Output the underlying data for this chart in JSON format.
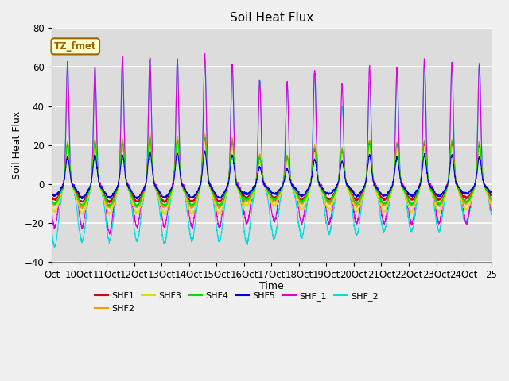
{
  "title": "Soil Heat Flux",
  "xlabel": "Time",
  "ylabel": "Soil Heat Flux",
  "ylim": [
    -40,
    80
  ],
  "xlim": [
    0,
    16
  ],
  "xtick_positions": [
    0,
    1,
    2,
    3,
    4,
    5,
    6,
    7,
    8,
    9,
    10,
    11,
    12,
    13,
    14,
    15,
    16
  ],
  "xtick_labels": [
    "Oct",
    "10Oct",
    "11Oct",
    "12Oct",
    "13Oct",
    "14Oct",
    "15Oct",
    "16Oct",
    "17Oct",
    "18Oct",
    "19Oct",
    "20Oct",
    "21Oct",
    "22Oct",
    "23Oct",
    "24Oct",
    "25"
  ],
  "ytick_positions": [
    -40,
    -20,
    0,
    20,
    40,
    60,
    80
  ],
  "series_colors": {
    "SHF1": "#dd0000",
    "SHF2": "#ff9900",
    "SHF3": "#dddd00",
    "SHF4": "#00dd00",
    "SHF5": "#0000dd",
    "SHF_1": "#dd00dd",
    "SHF_2": "#00dddd"
  },
  "annotation_text": "TZ_fmet",
  "annotation_bg": "#ffffcc",
  "annotation_border": "#996600",
  "plot_bg": "#dcdcdc",
  "fig_bg": "#f0f0f0",
  "grid_color": "#ffffff",
  "n_days": 16,
  "day_peaks_shf1": [
    20,
    21,
    21,
    24,
    23,
    24,
    22,
    14,
    13,
    18,
    17,
    21,
    20,
    21,
    21,
    20
  ],
  "day_peaks_shf2": [
    22,
    23,
    23,
    26,
    25,
    26,
    24,
    16,
    15,
    20,
    19,
    23,
    22,
    23,
    23,
    22
  ],
  "day_peaks_shf3": [
    19,
    20,
    20,
    22,
    21,
    22,
    20,
    12,
    12,
    17,
    16,
    20,
    19,
    20,
    20,
    19
  ],
  "day_peaks_shf4": [
    21,
    22,
    22,
    24,
    23,
    24,
    22,
    14,
    14,
    19,
    18,
    22,
    21,
    22,
    22,
    21
  ],
  "day_peaks_shf5": [
    14,
    15,
    15,
    17,
    16,
    17,
    15,
    9,
    8,
    13,
    12,
    15,
    14,
    15,
    15,
    14
  ],
  "day_peaks_shf_1": [
    62,
    60,
    65,
    65,
    64,
    66,
    61,
    53,
    52,
    58,
    51,
    60,
    59,
    64,
    62,
    62
  ],
  "day_peaks_shf_2": [
    62,
    60,
    62,
    65,
    64,
    65,
    60,
    53,
    52,
    58,
    40,
    52,
    59,
    63,
    62,
    62
  ],
  "day_troughs_shf1": [
    -8,
    -9,
    -9,
    -9,
    -9,
    -9,
    -9,
    -7,
    -7,
    -8,
    -8,
    -8,
    -8,
    -8,
    -8,
    -7
  ],
  "day_troughs_shf2": [
    -11,
    -12,
    -12,
    -12,
    -12,
    -12,
    -12,
    -9,
    -9,
    -10,
    -10,
    -11,
    -11,
    -11,
    -11,
    -10
  ],
  "day_troughs_shf3": [
    -14,
    -15,
    -15,
    -15,
    -15,
    -15,
    -15,
    -11,
    -11,
    -13,
    -13,
    -14,
    -14,
    -14,
    -14,
    -13
  ],
  "day_troughs_shf4": [
    -10,
    -11,
    -11,
    -11,
    -11,
    -11,
    -11,
    -8,
    -8,
    -9,
    -9,
    -10,
    -10,
    -10,
    -10,
    -9
  ],
  "day_troughs_shf5": [
    -6,
    -7,
    -7,
    -7,
    -7,
    -7,
    -7,
    -5,
    -5,
    -6,
    -5,
    -6,
    -6,
    -6,
    -6,
    -5
  ],
  "day_troughs_shf_1": [
    -22,
    -22,
    -25,
    -22,
    -22,
    -22,
    -22,
    -20,
    -19,
    -20,
    -20,
    -20,
    -20,
    -20,
    -20,
    -20
  ],
  "day_troughs_shf_2": [
    -32,
    -29,
    -29,
    -29,
    -30,
    -29,
    -29,
    -30,
    -28,
    -27,
    -25,
    -26,
    -24,
    -24,
    -24,
    -20
  ]
}
